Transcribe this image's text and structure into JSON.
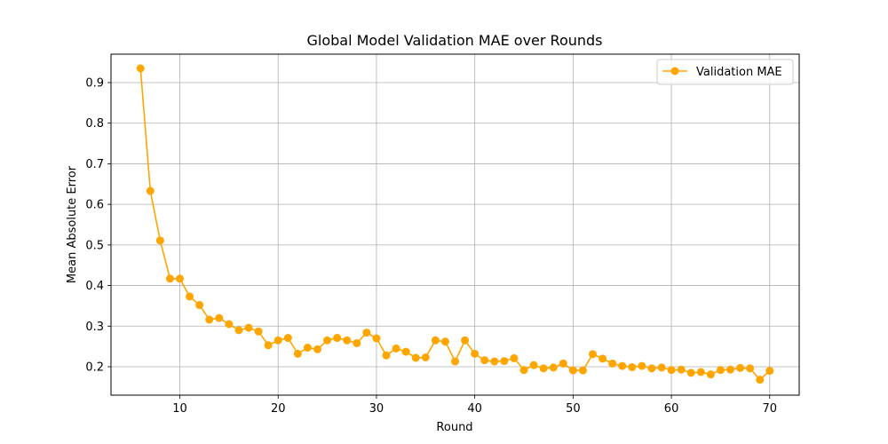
{
  "chart_data": {
    "type": "line",
    "title": "Global Model Validation MAE over Rounds",
    "xlabel": "Round",
    "ylabel": "Mean Absolute Error",
    "xlim": [
      3,
      73
    ],
    "ylim": [
      0.13,
      0.97
    ],
    "xticks": [
      10,
      20,
      30,
      40,
      50,
      60,
      70
    ],
    "yticks": [
      0.2,
      0.3,
      0.4,
      0.5,
      0.6,
      0.7,
      0.8,
      0.9
    ],
    "xtick_labels": [
      "10",
      "20",
      "30",
      "40",
      "50",
      "60",
      "70"
    ],
    "ytick_labels": [
      "0.2",
      "0.3",
      "0.4",
      "0.5",
      "0.6",
      "0.7",
      "0.8",
      "0.9"
    ],
    "grid": true,
    "legend_position": "top-right",
    "series": [
      {
        "name": "Validation MAE",
        "color": "#FFA500",
        "marker": "circle",
        "x": [
          6,
          7,
          8,
          9,
          10,
          11,
          12,
          13,
          14,
          15,
          16,
          17,
          18,
          19,
          20,
          21,
          22,
          23,
          24,
          25,
          26,
          27,
          28,
          29,
          30,
          31,
          32,
          33,
          34,
          35,
          36,
          37,
          38,
          39,
          40,
          41,
          42,
          43,
          44,
          45,
          46,
          47,
          48,
          49,
          50,
          51,
          52,
          53,
          54,
          55,
          56,
          57,
          58,
          59,
          60,
          61,
          62,
          63,
          64,
          65,
          66,
          67,
          68,
          69,
          70
        ],
        "y": [
          0.935,
          0.633,
          0.511,
          0.417,
          0.417,
          0.373,
          0.352,
          0.316,
          0.32,
          0.305,
          0.29,
          0.296,
          0.287,
          0.253,
          0.265,
          0.271,
          0.232,
          0.247,
          0.243,
          0.265,
          0.271,
          0.265,
          0.258,
          0.284,
          0.27,
          0.228,
          0.245,
          0.237,
          0.222,
          0.223,
          0.265,
          0.262,
          0.213,
          0.265,
          0.232,
          0.216,
          0.213,
          0.214,
          0.221,
          0.192,
          0.204,
          0.196,
          0.198,
          0.208,
          0.191,
          0.191,
          0.231,
          0.22,
          0.208,
          0.202,
          0.199,
          0.202,
          0.196,
          0.198,
          0.192,
          0.193,
          0.185,
          0.187,
          0.181,
          0.192,
          0.193,
          0.197,
          0.196,
          0.168,
          0.19
        ]
      }
    ]
  }
}
